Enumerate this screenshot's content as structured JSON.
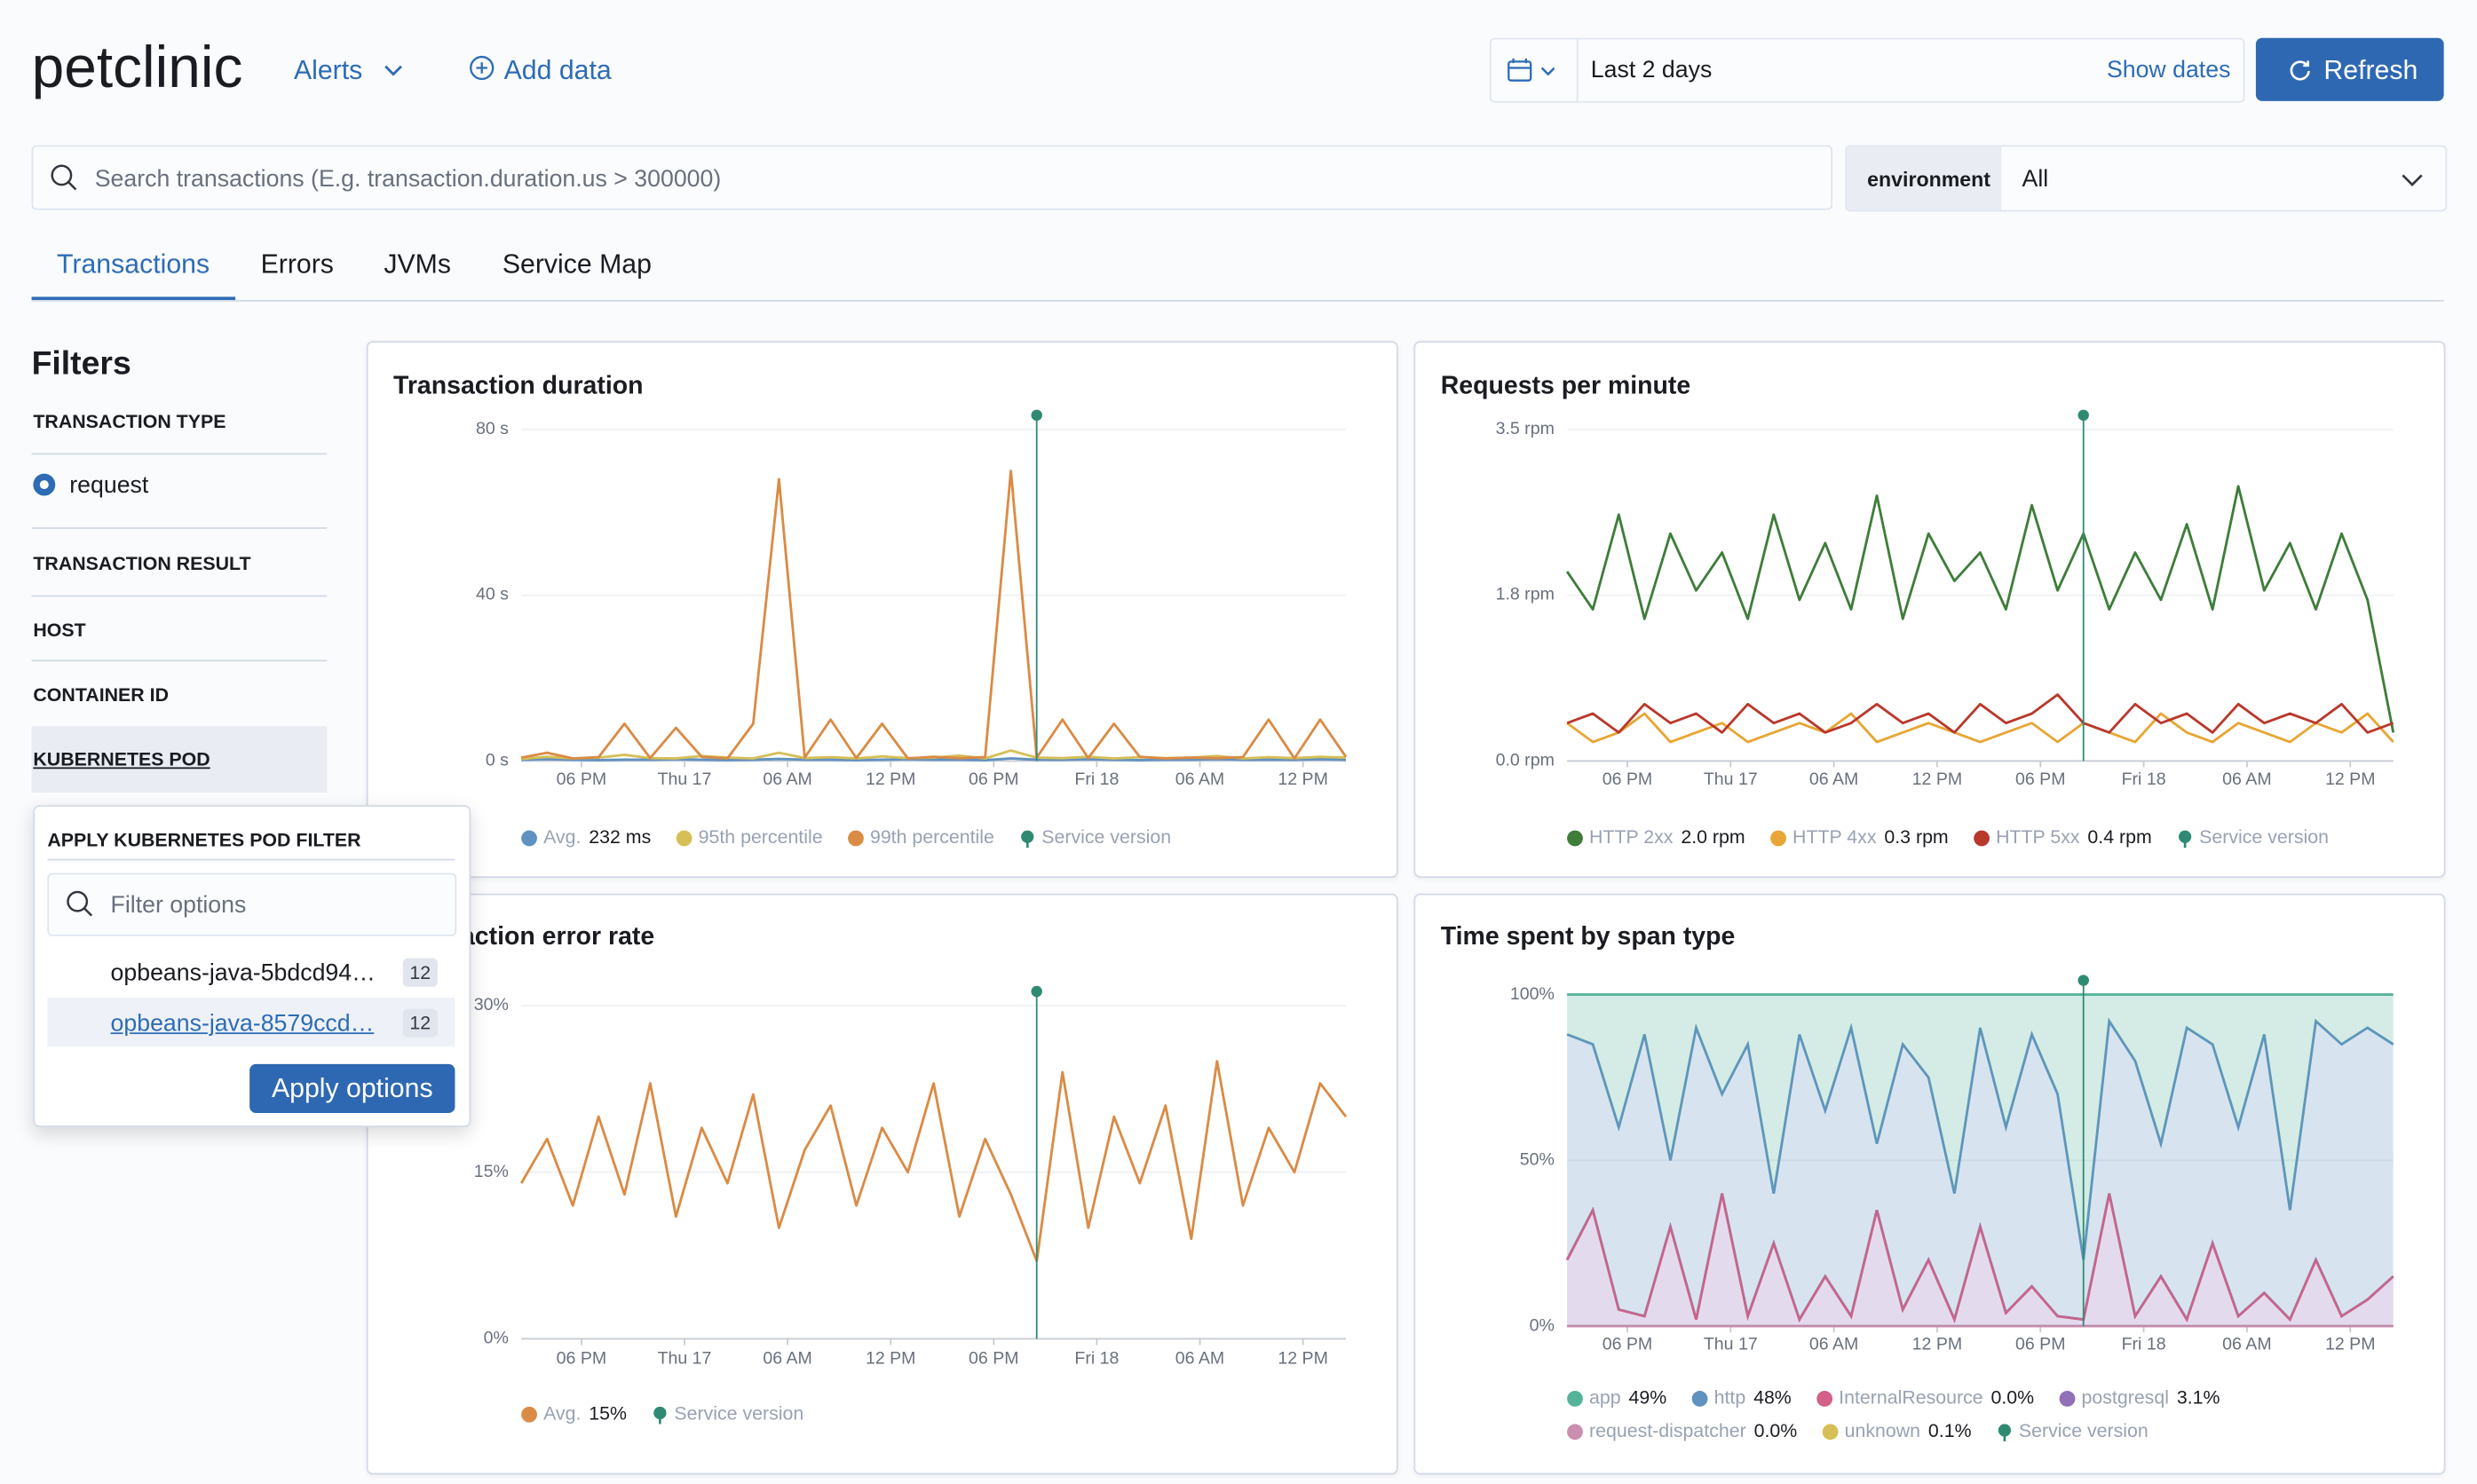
{
  "header": {
    "app_name": "petclinic",
    "alerts": "Alerts",
    "add_data": "Add data",
    "date_range": "Last 2 days",
    "show_dates": "Show dates",
    "refresh": "Refresh"
  },
  "search": {
    "placeholder": "Search transactions (E.g. transaction.duration.us > 300000)",
    "environment_label": "environment",
    "environment_value": "All"
  },
  "tabs": [
    "Transactions",
    "Errors",
    "JVMs",
    "Service Map"
  ],
  "filters": {
    "title": "Filters",
    "groups": [
      {
        "label": "TRANSACTION TYPE",
        "options": [
          "request"
        ]
      },
      {
        "label": "TRANSACTION RESULT"
      },
      {
        "label": "HOST"
      },
      {
        "label": "CONTAINER ID"
      },
      {
        "label": "KUBERNETES POD"
      }
    ]
  },
  "popover": {
    "title": "APPLY KUBERNETES POD FILTER",
    "search_placeholder": "Filter options",
    "options": [
      {
        "label": "opbeans-java-5bdcd94…",
        "count": 12
      },
      {
        "label": "opbeans-java-8579ccd…",
        "count": 12
      }
    ],
    "button": "Apply options"
  },
  "chart_data": [
    {
      "type": "line",
      "title": "Transaction duration",
      "x": [
        0,
        1.5,
        3,
        4.5,
        6,
        7.5,
        9,
        10.5,
        12,
        13.5,
        15,
        16.5,
        18,
        19.5,
        21,
        22.5,
        24,
        25.5,
        27,
        28.5,
        30,
        31.5,
        33,
        34.5,
        36,
        37.5,
        39,
        40.5,
        42,
        43.5,
        45,
        46.5,
        48
      ],
      "xlim": [
        0,
        48
      ],
      "xticks": [
        {
          "value": 3.5,
          "label": "06 PM"
        },
        {
          "value": 9.5,
          "label": "Thu 17"
        },
        {
          "value": 15.5,
          "label": "06 AM"
        },
        {
          "value": 21.5,
          "label": "12 PM"
        },
        {
          "value": 27.5,
          "label": "06 PM"
        },
        {
          "value": 33.5,
          "label": "Fri 18"
        },
        {
          "value": 39.5,
          "label": "06 AM"
        },
        {
          "value": 45.5,
          "label": "12 PM"
        }
      ],
      "ylim": [
        0,
        80
      ],
      "yticks": [
        {
          "value": 0,
          "label": "0 s"
        },
        {
          "value": 40,
          "label": "40 s"
        },
        {
          "value": 80,
          "label": "80 s"
        }
      ],
      "grid": true,
      "annotation": {
        "label": "Service version",
        "x": 30,
        "color": "#2f8a73"
      },
      "series": [
        {
          "name": "Avg.",
          "legend_value": "232 ms",
          "color": "#6092c0",
          "values": [
            0.3,
            0.4,
            0.3,
            0.2,
            0.3,
            0.3,
            0.4,
            0.3,
            0.2,
            0.3,
            0.5,
            0.3,
            0.3,
            0.2,
            0.3,
            0.4,
            0.3,
            0.3,
            0.2,
            0.6,
            0.3,
            0.3,
            0.4,
            0.3,
            0.2,
            0.3,
            0.3,
            0.4,
            0.3,
            0.3,
            0.3,
            0.4,
            0.3
          ]
        },
        {
          "name": "95th percentile",
          "color": "#d6bf57",
          "values": [
            0.5,
            1,
            0.6,
            0.8,
            1.5,
            0.7,
            0.6,
            1.2,
            0.8,
            0.6,
            2,
            0.7,
            0.9,
            0.6,
            1.1,
            0.7,
            0.8,
            1.3,
            0.6,
            2.5,
            0.8,
            0.7,
            1,
            0.6,
            0.9,
            0.7,
            0.8,
            1.2,
            0.6,
            0.9,
            0.7,
            1,
            0.8
          ]
        },
        {
          "name": "99th percentile",
          "color": "#da8b45",
          "values": [
            0.8,
            2,
            0.6,
            0.9,
            9,
            0.7,
            8,
            1,
            0.6,
            9,
            68,
            0.8,
            10,
            0.7,
            9,
            0.6,
            1,
            0.7,
            0.9,
            70,
            0.8,
            10,
            0.7,
            9,
            1,
            0.6,
            0.8,
            0.7,
            0.9,
            10,
            0.6,
            10,
            1
          ]
        }
      ]
    },
    {
      "type": "line",
      "title": "Requests per minute",
      "x": [
        0,
        1.5,
        3,
        4.5,
        6,
        7.5,
        9,
        10.5,
        12,
        13.5,
        15,
        16.5,
        18,
        19.5,
        21,
        22.5,
        24,
        25.5,
        27,
        28.5,
        30,
        31.5,
        33,
        34.5,
        36,
        37.5,
        39,
        40.5,
        42,
        43.5,
        45,
        46.5,
        48
      ],
      "xlim": [
        0,
        48
      ],
      "xticks": [
        {
          "value": 3.5,
          "label": "06 PM"
        },
        {
          "value": 9.5,
          "label": "Thu 17"
        },
        {
          "value": 15.5,
          "label": "06 AM"
        },
        {
          "value": 21.5,
          "label": "12 PM"
        },
        {
          "value": 27.5,
          "label": "06 PM"
        },
        {
          "value": 33.5,
          "label": "Fri 18"
        },
        {
          "value": 39.5,
          "label": "06 AM"
        },
        {
          "value": 45.5,
          "label": "12 PM"
        }
      ],
      "ylim": [
        0,
        3.5
      ],
      "yticks": [
        {
          "value": 0,
          "label": "0.0 rpm"
        },
        {
          "value": 1.75,
          "label": "1.8 rpm"
        },
        {
          "value": 3.5,
          "label": "3.5 rpm"
        }
      ],
      "grid": true,
      "annotation": {
        "label": "Service version",
        "x": 30,
        "color": "#2f8a73"
      },
      "series": [
        {
          "name": "HTTP 2xx",
          "legend_value": "2.0 rpm",
          "color": "#3f7d3a",
          "values": [
            2.0,
            1.6,
            2.6,
            1.5,
            2.4,
            1.8,
            2.2,
            1.5,
            2.6,
            1.7,
            2.3,
            1.6,
            2.8,
            1.5,
            2.4,
            1.9,
            2.2,
            1.6,
            2.7,
            1.8,
            2.4,
            1.6,
            2.2,
            1.7,
            2.5,
            1.6,
            2.9,
            1.8,
            2.3,
            1.6,
            2.4,
            1.7,
            0.3
          ]
        },
        {
          "name": "HTTP 4xx",
          "legend_value": "0.3 rpm",
          "color": "#e7a635",
          "values": [
            0.4,
            0.2,
            0.3,
            0.5,
            0.2,
            0.3,
            0.4,
            0.2,
            0.3,
            0.4,
            0.3,
            0.5,
            0.2,
            0.3,
            0.4,
            0.3,
            0.2,
            0.3,
            0.4,
            0.2,
            0.4,
            0.3,
            0.2,
            0.5,
            0.3,
            0.2,
            0.4,
            0.3,
            0.2,
            0.4,
            0.3,
            0.5,
            0.2
          ]
        },
        {
          "name": "HTTP 5xx",
          "legend_value": "0.4 rpm",
          "color": "#b9382c",
          "values": [
            0.4,
            0.5,
            0.3,
            0.6,
            0.4,
            0.5,
            0.3,
            0.6,
            0.4,
            0.5,
            0.3,
            0.4,
            0.6,
            0.4,
            0.5,
            0.3,
            0.6,
            0.4,
            0.5,
            0.7,
            0.4,
            0.3,
            0.6,
            0.4,
            0.5,
            0.3,
            0.6,
            0.4,
            0.5,
            0.4,
            0.6,
            0.3,
            0.4
          ]
        }
      ]
    },
    {
      "type": "line",
      "title": "Transaction error rate",
      "x": [
        0,
        1.5,
        3,
        4.5,
        6,
        7.5,
        9,
        10.5,
        12,
        13.5,
        15,
        16.5,
        18,
        19.5,
        21,
        22.5,
        24,
        25.5,
        27,
        28.5,
        30,
        31.5,
        33,
        34.5,
        36,
        37.5,
        39,
        40.5,
        42,
        43.5,
        45,
        46.5,
        48
      ],
      "xlim": [
        0,
        48
      ],
      "xticks": [
        {
          "value": 3.5,
          "label": "06 PM"
        },
        {
          "value": 9.5,
          "label": "Thu 17"
        },
        {
          "value": 15.5,
          "label": "06 AM"
        },
        {
          "value": 21.5,
          "label": "12 PM"
        },
        {
          "value": 27.5,
          "label": "06 PM"
        },
        {
          "value": 33.5,
          "label": "Fri 18"
        },
        {
          "value": 39.5,
          "label": "06 AM"
        },
        {
          "value": 45.5,
          "label": "12 PM"
        }
      ],
      "ylim": [
        0,
        30
      ],
      "yticks": [
        {
          "value": 0,
          "label": "0%"
        },
        {
          "value": 15,
          "label": "15%"
        },
        {
          "value": 30,
          "label": "30%"
        }
      ],
      "grid": true,
      "annotation": {
        "label": "Service version",
        "x": 30,
        "color": "#2f8a73"
      },
      "series": [
        {
          "name": "Avg.",
          "legend_value": "15%",
          "color": "#da8b45",
          "values": [
            14,
            18,
            12,
            20,
            13,
            23,
            11,
            19,
            14,
            22,
            10,
            17,
            21,
            12,
            19,
            15,
            23,
            11,
            18,
            13,
            7,
            24,
            10,
            20,
            14,
            21,
            9,
            25,
            12,
            19,
            15,
            23,
            20
          ]
        }
      ]
    },
    {
      "type": "area",
      "stacked": true,
      "title": "Time spent by span type",
      "x": [
        0,
        1.5,
        3,
        4.5,
        6,
        7.5,
        9,
        10.5,
        12,
        13.5,
        15,
        16.5,
        18,
        19.5,
        21,
        22.5,
        24,
        25.5,
        27,
        28.5,
        30,
        31.5,
        33,
        34.5,
        36,
        37.5,
        39,
        40.5,
        42,
        43.5,
        45,
        46.5,
        48
      ],
      "xlim": [
        0,
        48
      ],
      "xticks": [
        {
          "value": 3.5,
          "label": "06 PM"
        },
        {
          "value": 9.5,
          "label": "Thu 17"
        },
        {
          "value": 15.5,
          "label": "06 AM"
        },
        {
          "value": 21.5,
          "label": "12 PM"
        },
        {
          "value": 27.5,
          "label": "06 PM"
        },
        {
          "value": 33.5,
          "label": "Fri 18"
        },
        {
          "value": 39.5,
          "label": "06 AM"
        },
        {
          "value": 45.5,
          "label": "12 PM"
        }
      ],
      "ylim": [
        0,
        100
      ],
      "yticks": [
        {
          "value": 0,
          "label": "0%"
        },
        {
          "value": 50,
          "label": "50%"
        },
        {
          "value": 100,
          "label": "100%"
        }
      ],
      "grid": true,
      "annotation": {
        "label": "Service version",
        "x": 30,
        "color": "#2f8a73"
      },
      "series": [
        {
          "name": "app",
          "legend_value": "49%",
          "color": "#54b399",
          "values": [
            12,
            15,
            40,
            12,
            50,
            10,
            30,
            15,
            60,
            12,
            35,
            10,
            45,
            15,
            25,
            60,
            10,
            40,
            12,
            30,
            80,
            8,
            20,
            45,
            10,
            15,
            40,
            12,
            65,
            8,
            15,
            10,
            15
          ]
        },
        {
          "name": "http",
          "legend_value": "48%",
          "color": "#6092c0",
          "values": [
            68,
            50,
            55,
            85,
            20,
            88,
            30,
            82,
            15,
            86,
            50,
            87,
            20,
            80,
            55,
            38,
            60,
            56,
            76,
            67,
            18,
            52,
            77,
            40,
            88,
            60,
            57,
            78,
            33,
            72,
            82,
            82,
            70
          ]
        },
        {
          "name": "InternalResource",
          "legend_value": "0.0%",
          "color": "#d36086",
          "values": [
            0,
            0,
            0,
            0,
            0,
            0,
            0,
            0,
            0,
            0,
            0,
            0,
            0,
            0,
            0,
            0,
            0,
            0,
            0,
            0,
            0,
            0,
            0,
            0,
            0,
            0,
            0,
            0,
            0,
            0,
            0,
            0,
            0
          ]
        },
        {
          "name": "postgresql",
          "legend_value": "3.1%",
          "color": "#9170b8",
          "values": [
            20,
            35,
            5,
            3,
            30,
            2,
            40,
            3,
            25,
            2,
            15,
            3,
            35,
            5,
            20,
            2,
            30,
            4,
            12,
            3,
            2,
            40,
            3,
            15,
            2,
            25,
            3,
            10,
            2,
            20,
            3,
            8,
            15
          ]
        },
        {
          "name": "request-dispatcher",
          "legend_value": "0.0%",
          "color": "#ca8eae",
          "values": [
            0,
            0,
            0,
            0,
            0,
            0,
            0,
            0,
            0,
            0,
            0,
            0,
            0,
            0,
            0,
            0,
            0,
            0,
            0,
            0,
            0,
            0,
            0,
            0,
            0,
            0,
            0,
            0,
            0,
            0,
            0,
            0,
            0
          ]
        },
        {
          "name": "unknown",
          "legend_value": "0.1%",
          "color": "#d6bf57",
          "values": [
            0,
            0,
            0,
            0,
            0,
            0,
            0,
            0,
            0,
            0,
            0,
            0,
            0,
            0,
            0,
            0,
            0,
            0,
            0,
            0,
            0,
            0,
            0,
            0,
            0,
            0,
            0,
            0,
            0,
            0,
            0,
            0,
            0
          ]
        }
      ]
    }
  ]
}
